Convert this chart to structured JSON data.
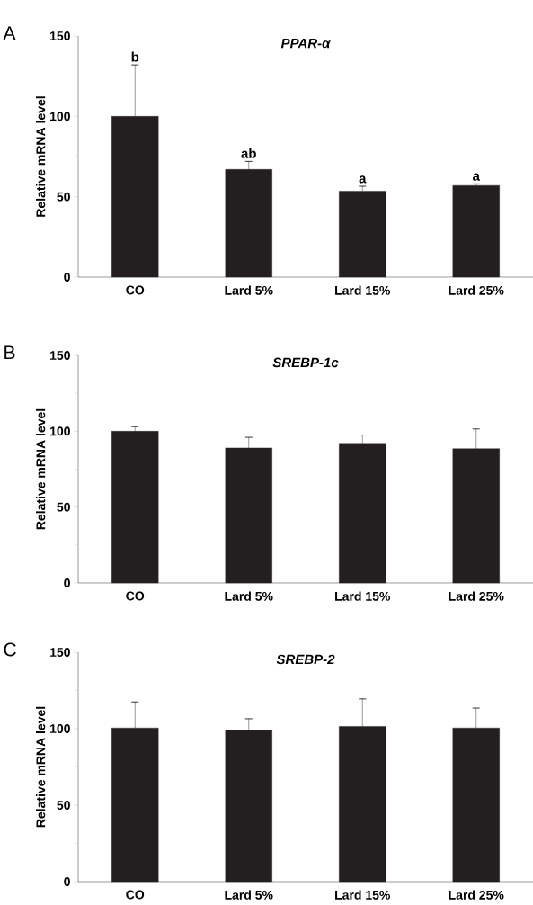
{
  "chart_data": [
    {
      "type": "bar",
      "title": "PPAR-α",
      "ylabel": "Relative mRNA level",
      "categories": [
        "CO",
        "Lard 5%",
        "Lard 15%",
        "Lard 25%"
      ],
      "values": [
        100,
        67,
        53.5,
        57
      ],
      "errors": [
        32,
        5,
        3,
        1
      ],
      "color": "#231f20",
      "ylim": [
        0,
        150
      ],
      "yticks": [
        0,
        50,
        100,
        150
      ],
      "annotations": [
        "A",
        {
          "text": "b",
          "x": "CO",
          "y": 132
        },
        {
          "text": "ab",
          "x": "Lard 5%",
          "y": 72
        },
        {
          "text": "a",
          "x": "Lard 15%",
          "y": 56.5
        },
        {
          "text": "a",
          "x": "Lard 25%",
          "y": 58
        }
      ]
    },
    {
      "type": "bar",
      "title": "SREBP-1c",
      "ylabel": "Relative mRNA level",
      "categories": [
        "CO",
        "Lard 5%",
        "Lard 15%",
        "Lard 25%"
      ],
      "values": [
        100,
        89,
        92,
        88.5
      ],
      "errors": [
        3,
        7,
        5.5,
        13
      ],
      "color": "#231f20",
      "ylim": [
        0,
        150
      ],
      "yticks": [
        0,
        50,
        100,
        150
      ],
      "annotations": [
        "B"
      ]
    },
    {
      "type": "bar",
      "title": "SREBP-2",
      "ylabel": "Relative mRNA level",
      "categories": [
        "CO",
        "Lard 5%",
        "Lard 15%",
        "Lard 25%"
      ],
      "values": [
        100.5,
        99,
        101.5,
        100.5
      ],
      "errors": [
        17,
        7.5,
        18,
        13
      ],
      "color": "#231f20",
      "ylim": [
        0,
        150
      ],
      "yticks": [
        0,
        50,
        100,
        150
      ],
      "annotations": [
        "C"
      ]
    }
  ]
}
